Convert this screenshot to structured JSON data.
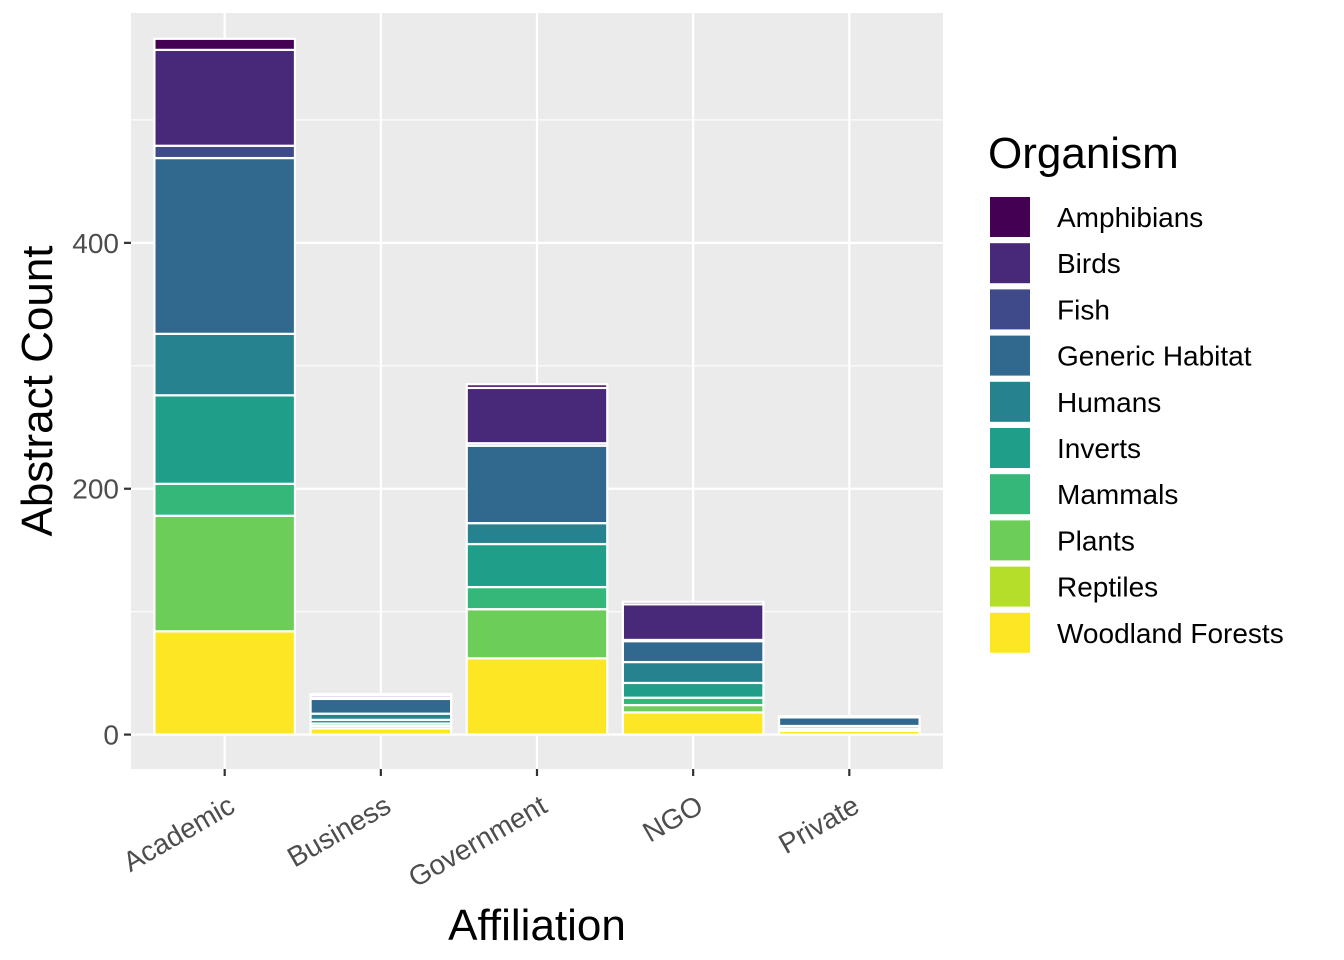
{
  "chart_data": {
    "type": "bar",
    "stacked": true,
    "title": "",
    "xlabel": "Affiliation",
    "ylabel": "Abstract Count",
    "categories": [
      "Academic",
      "Business",
      "Government",
      "NGO",
      "Private"
    ],
    "yticks": [
      0,
      200,
      400
    ],
    "ylim": [
      -28,
      587
    ],
    "grid": true,
    "legend_title": "Organism",
    "legend_position": "right",
    "series": [
      {
        "name": "Woodland Forests",
        "color": "#FDE725",
        "values": [
          84,
          5,
          62,
          18,
          3
        ]
      },
      {
        "name": "Reptiles",
        "color": "#B5DE2B",
        "values": [
          0,
          0,
          0,
          0,
          0
        ]
      },
      {
        "name": "Plants",
        "color": "#6DCD59",
        "values": [
          94,
          2,
          40,
          6,
          0
        ]
      },
      {
        "name": "Mammals",
        "color": "#35B779",
        "values": [
          26,
          2,
          18,
          6,
          1
        ]
      },
      {
        "name": "Inverts",
        "color": "#1F9E89",
        "values": [
          72,
          3,
          35,
          12,
          1
        ]
      },
      {
        "name": "Humans",
        "color": "#26828E",
        "values": [
          50,
          5,
          17,
          17,
          2
        ]
      },
      {
        "name": "Generic Habitat",
        "color": "#31688E",
        "values": [
          143,
          12,
          63,
          17,
          7
        ]
      },
      {
        "name": "Fish",
        "color": "#3E4A89",
        "values": [
          10,
          1,
          2,
          1,
          1
        ]
      },
      {
        "name": "Birds",
        "color": "#482878",
        "values": [
          78,
          2,
          45,
          29,
          0
        ]
      },
      {
        "name": "Amphibians",
        "color": "#440154",
        "values": [
          9,
          1,
          3,
          2,
          0
        ]
      }
    ]
  }
}
